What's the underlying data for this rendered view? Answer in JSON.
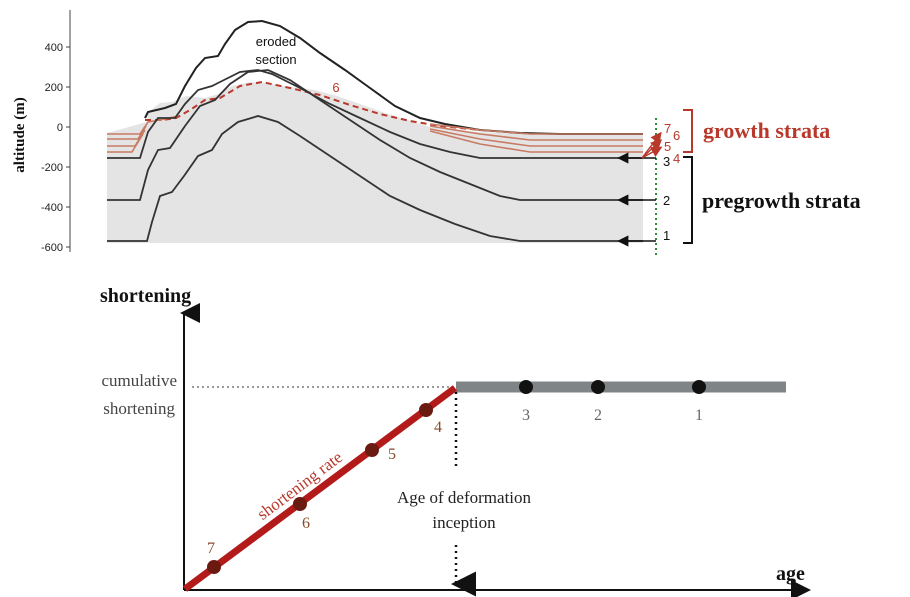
{
  "cross_section": {
    "y_axis_label": "altitude (m)",
    "y_ticks": [
      "400",
      "200",
      "0",
      "-200",
      "-400",
      "-600"
    ],
    "eroded_label_line1": "eroded",
    "eroded_label_line2": "section",
    "surface_6_label": "6",
    "horizon_labels": [
      "7",
      "6",
      "5",
      "4",
      "3",
      "2",
      "1"
    ],
    "growth_strata_label": "growth strata",
    "pregrowth_strata_label": "pregrowth strata",
    "colors": {
      "growth": "#b8392b",
      "growth_layers": "#c97a62",
      "pregrowth": "#111111",
      "fill": "#e4e4e4",
      "well": "#2e8b3a"
    }
  },
  "chart": {
    "y_axis_label": "shortening",
    "x_axis_label": "age",
    "cumulative_line1": "cumulative",
    "cumulative_line2": "shortening",
    "rate_label": "shortening rate",
    "inception_line1": "Age of deformation",
    "inception_line2": "inception",
    "growth_points": [
      "7",
      "6",
      "5",
      "4"
    ],
    "pregrowth_points": [
      "3",
      "2",
      "1"
    ],
    "colors": {
      "rate_line": "#b31b1b",
      "plateau": "#7f8487",
      "point": "#111111",
      "growth_point": "#6b1a12",
      "growth_text": "#8a4a2a",
      "axis": "#111111"
    }
  }
}
